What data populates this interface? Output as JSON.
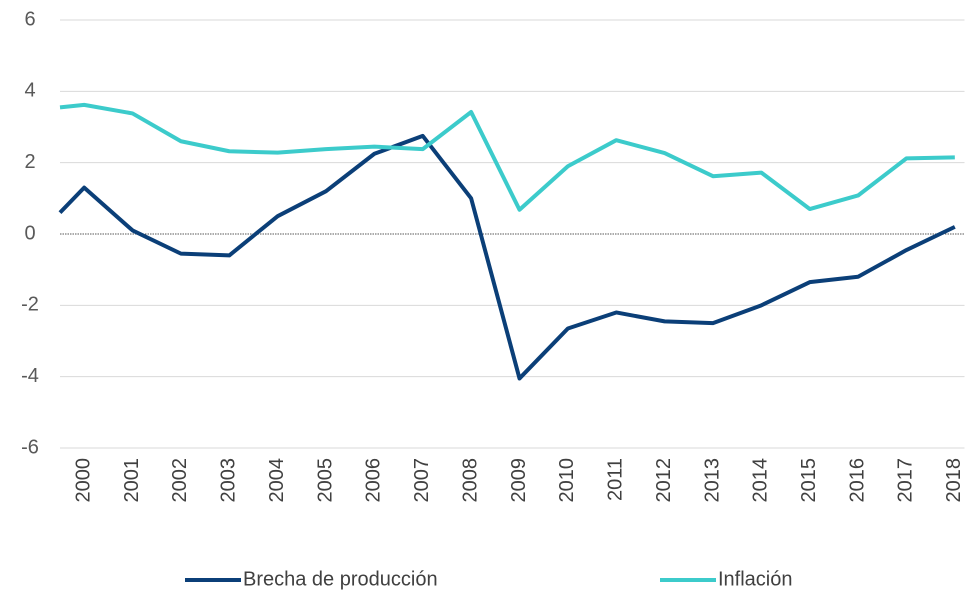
{
  "chart_data": {
    "type": "line",
    "x": [
      1999.5,
      2000,
      2001,
      2002,
      2003,
      2004,
      2005,
      2006,
      2007,
      2008,
      2009,
      2010,
      2011,
      2012,
      2013,
      2014,
      2015,
      2016,
      2017,
      2018
    ],
    "series": [
      {
        "name": "Brecha de producción",
        "color": "#0b3f78",
        "values": [
          0.6,
          1.3,
          0.1,
          -0.55,
          -0.6,
          0.5,
          1.2,
          2.25,
          2.75,
          1.0,
          -4.05,
          -2.65,
          -2.2,
          -2.45,
          -2.5,
          -2.0,
          -1.35,
          -1.2,
          -0.45,
          0.2
        ]
      },
      {
        "name": "Inflación",
        "color": "#3ccbcb",
        "values": [
          3.55,
          3.62,
          3.38,
          2.6,
          2.32,
          2.28,
          2.38,
          2.45,
          2.38,
          3.42,
          0.68,
          1.9,
          2.63,
          2.27,
          1.62,
          1.72,
          0.7,
          1.08,
          2.12,
          2.15
        ]
      }
    ],
    "xlim": [
      1999.5,
      2018.2
    ],
    "xticks": [
      2000,
      2001,
      2002,
      2003,
      2004,
      2005,
      2006,
      2007,
      2008,
      2009,
      2010,
      2011,
      2012,
      2013,
      2014,
      2015,
      2016,
      2017,
      2018
    ],
    "ylim": [
      -6,
      6
    ],
    "yticks": [
      -6,
      -4,
      -2,
      0,
      2,
      4,
      6
    ],
    "grid": true
  }
}
